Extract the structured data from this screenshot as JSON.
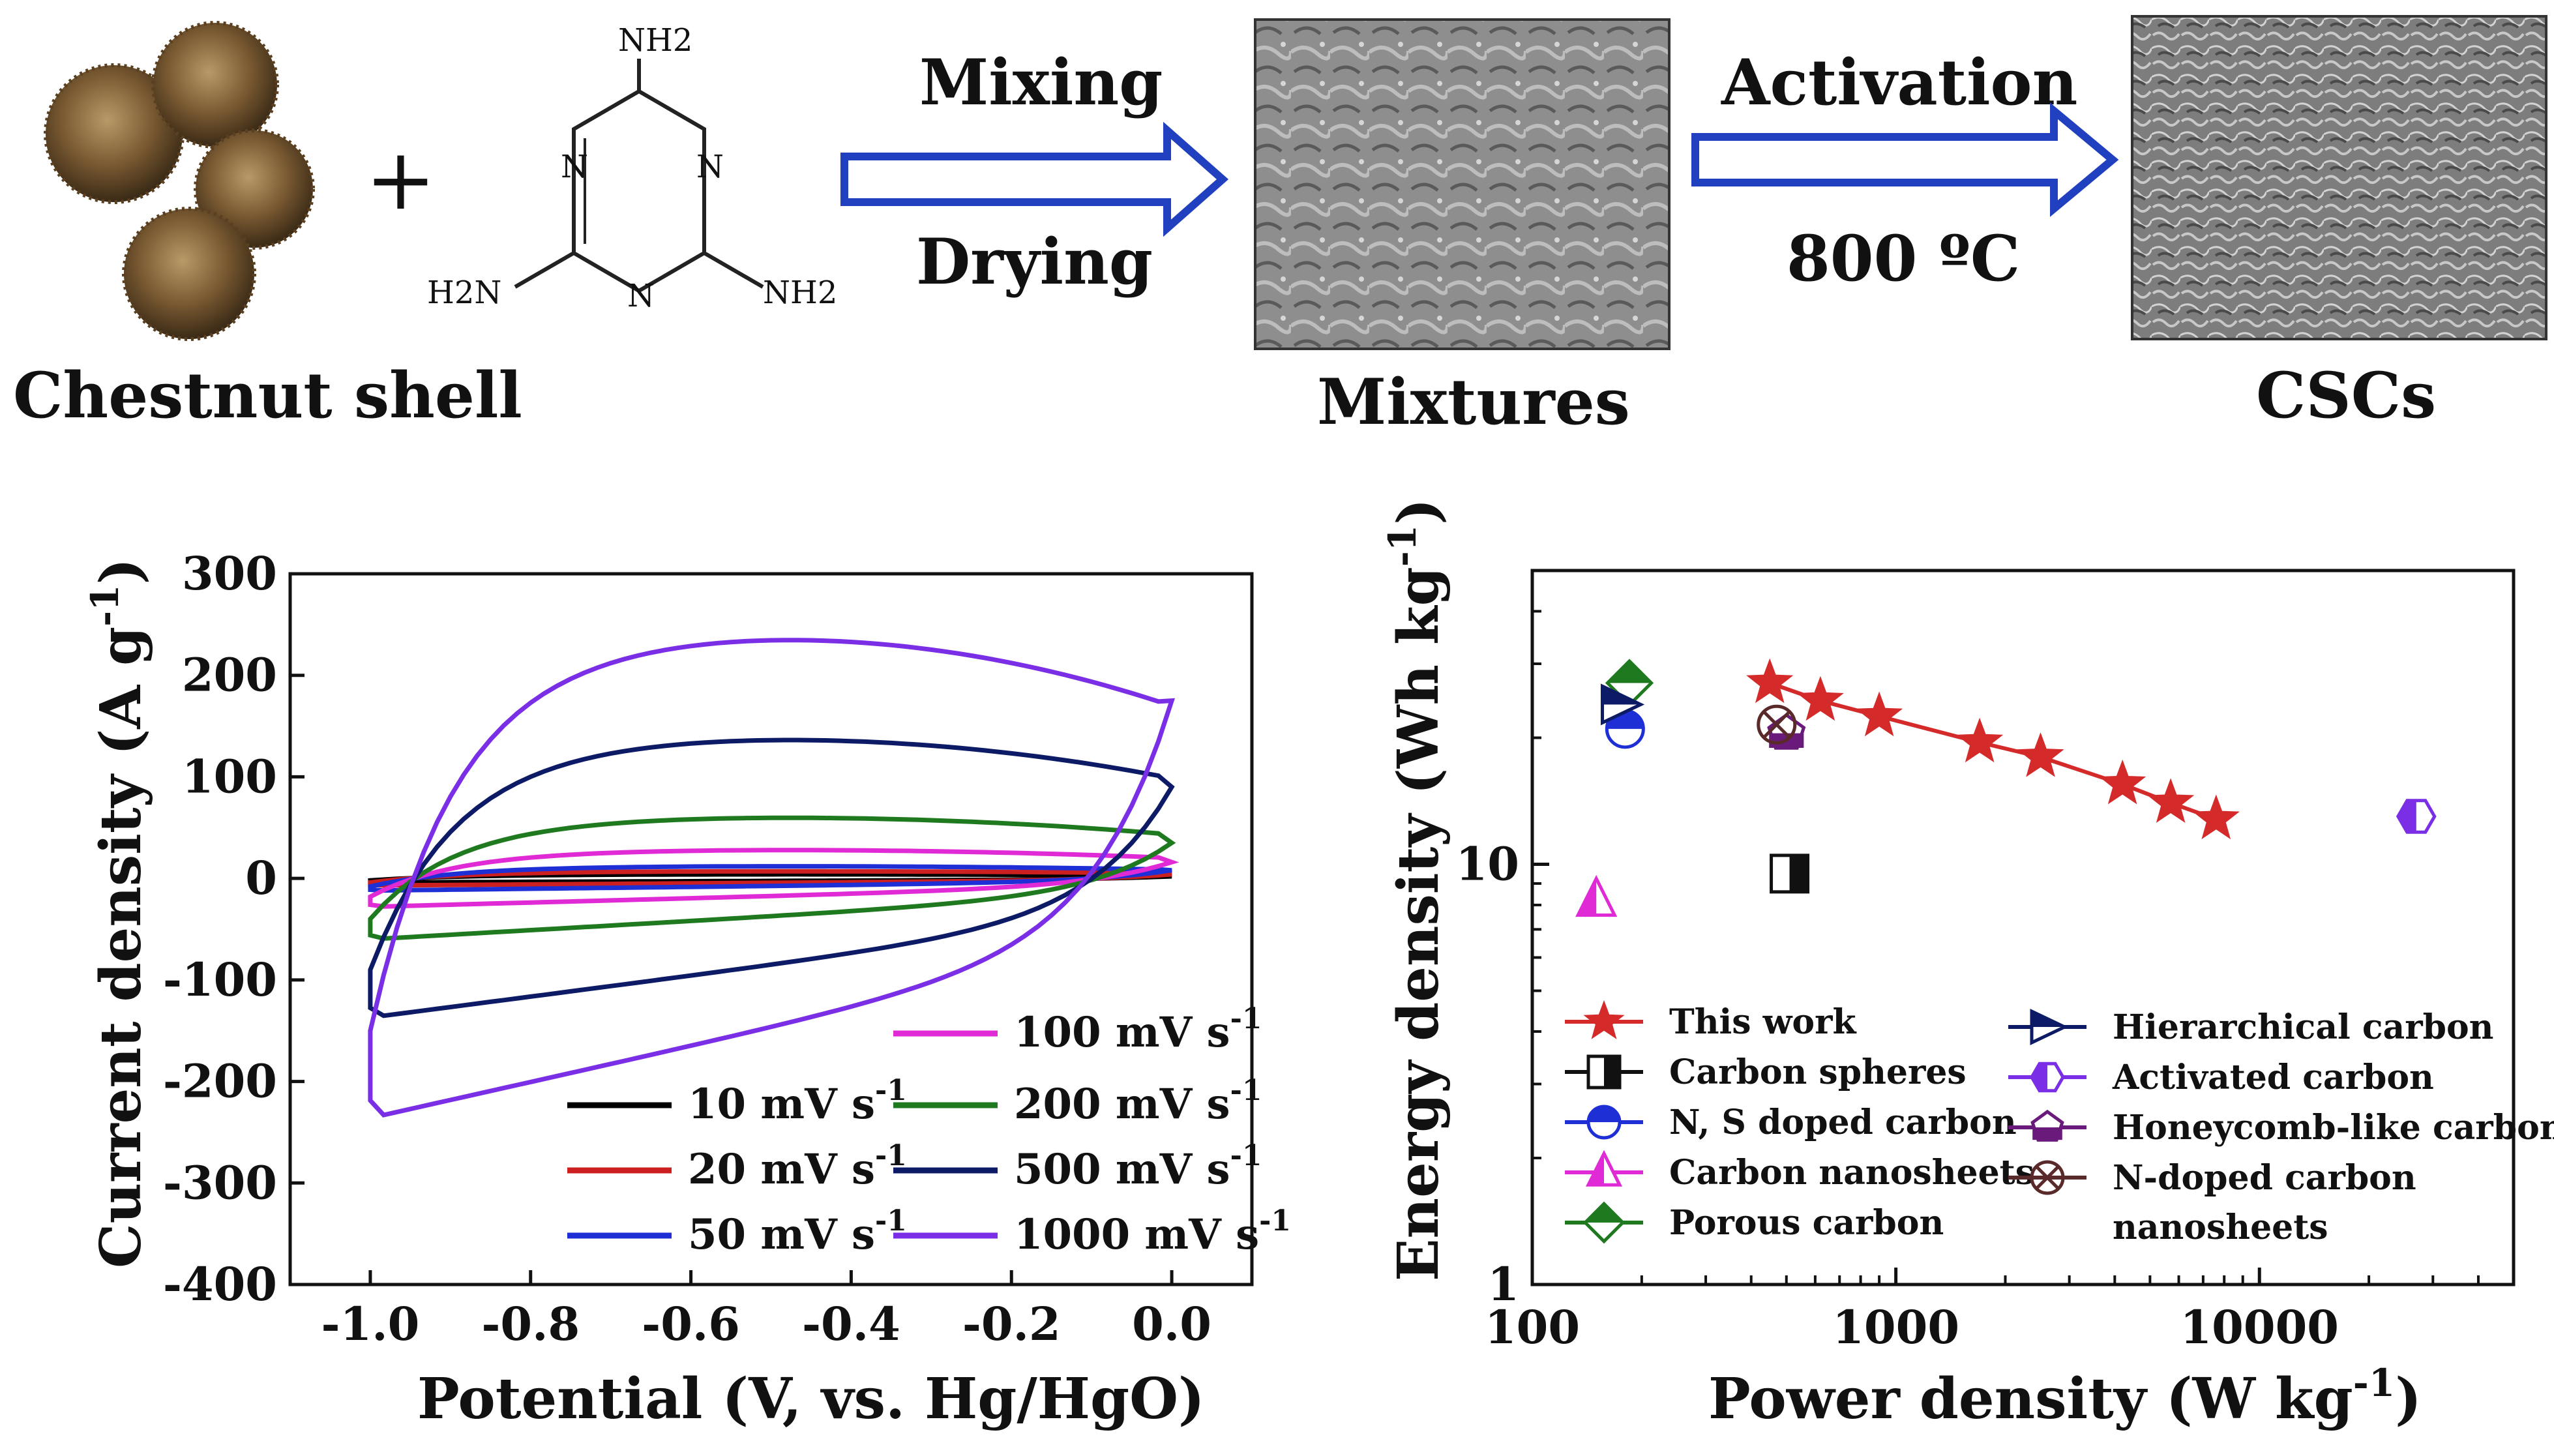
{
  "scheme": {
    "chestnut_label": "Chestnut shell",
    "plus": "+",
    "melamine": {
      "nh2_top": "NH2",
      "nh2_left": "H2N",
      "nh2_right": "NH2",
      "n": "N"
    },
    "step1_top": "Mixing",
    "step1_bottom": "Drying",
    "mixtures_label": "Mixtures",
    "step2_top": "Activation",
    "step2_bottom": "800 ºC",
    "cscs_label": "CSCs",
    "arrow_color": "#2040c0"
  },
  "chart_data": [
    {
      "type": "line",
      "title": "",
      "xlabel": "Potential (V, vs. Hg/HgO)",
      "ylabel": "Current density (A g-1)",
      "xlim": [
        -1.1,
        0.1
      ],
      "ylim": [
        -400,
        300
      ],
      "xticks": [
        "-1.0",
        "-0.8",
        "-0.6",
        "-0.4",
        "-0.2",
        "0.0"
      ],
      "yticks": [
        "300",
        "200",
        "100",
        "0",
        "-100",
        "-200",
        "-300",
        "-400"
      ],
      "series": [
        {
          "name": "10 mV s-1",
          "label": "10 mV s",
          "sup": "-1",
          "color": "#000000",
          "a": 4,
          "t0": 2,
          "b0": -2
        },
        {
          "name": "20 mV s-1",
          "label": "20 mV s",
          "sup": "-1",
          "color": "#cc1f1f",
          "a": 7,
          "t0": 4,
          "b0": -4
        },
        {
          "name": "50 mV s-1",
          "label": "50 mV s",
          "sup": "-1",
          "color": "#1f2fd6",
          "a": 12,
          "t0": 8,
          "b0": -8
        },
        {
          "name": "100 mV s-1",
          "label": "100 mV s",
          "sup": "-1",
          "color": "#e02ad6",
          "a": 28,
          "t0": 16,
          "b0": -18
        },
        {
          "name": "200 mV s-1",
          "label": "200 mV s",
          "sup": "-1",
          "color": "#1f7a1f",
          "a": 60,
          "t0": 35,
          "b0": -40
        },
        {
          "name": "500 mV s-1",
          "label": "500 mV s",
          "sup": "-1",
          "color": "#0d1a66",
          "a": 137,
          "t0": 90,
          "b0": -90
        },
        {
          "name": "1000 mV s-1",
          "label": "1000 mV s",
          "sup": "-1",
          "color": "#7a2ee6",
          "a": 236,
          "t0": 175,
          "b0": -150
        }
      ]
    },
    {
      "type": "scatter",
      "title": "",
      "xlabel": "Power density (W kg-1)",
      "ylabel": "Energy density (Wh kg-1)",
      "xscale": "log",
      "yscale": "log",
      "xlim": [
        100,
        50000
      ],
      "ylim": [
        1,
        50
      ],
      "xticks": [
        "100",
        "1000",
        "10000"
      ],
      "yticks": [
        "10",
        "1"
      ],
      "series": [
        {
          "name": "This work",
          "marker": "star",
          "color": "#d42a2a",
          "points": [
            [
              450,
              27
            ],
            [
              620,
              24.5
            ],
            [
              900,
              22.5
            ],
            [
              1700,
              19.5
            ],
            [
              2500,
              18
            ],
            [
              4200,
              15.5
            ],
            [
              5700,
              14
            ],
            [
              7600,
              12.8
            ]
          ]
        },
        {
          "name": "Carbon spheres",
          "marker": "half-square",
          "color": "#111111",
          "points": [
            [
              510,
              9.5
            ]
          ]
        },
        {
          "name": "N, S doped carbon",
          "marker": "half-circle",
          "color": "#1f2fd6",
          "points": [
            [
              180,
              21
            ]
          ]
        },
        {
          "name": "Carbon nanosheets",
          "marker": "half-triangle",
          "color": "#e02ad6",
          "points": [
            [
              150,
              8.2
            ]
          ]
        },
        {
          "name": "Porous carbon",
          "marker": "half-diamond",
          "color": "#1f7a1f",
          "points": [
            [
              185,
              27
            ]
          ]
        },
        {
          "name": "Hierarchical carbon",
          "marker": "half-right-triangle",
          "color": "#0d1a66",
          "points": [
            [
              175,
              24
            ]
          ]
        },
        {
          "name": "Activated carbon",
          "marker": "half-hexagon",
          "color": "#7a2ee6",
          "points": [
            [
              27000,
              13
            ]
          ]
        },
        {
          "name": "Honeycomb-like carbon",
          "marker": "half-pentagon",
          "color": "#6a1a7a",
          "points": [
            [
              500,
              20.5
            ]
          ]
        },
        {
          "name": "N-doped carbon nanosheets",
          "name_line2": "nanosheets",
          "marker": "x-circle",
          "color": "#5a2a2a",
          "points": [
            [
              470,
              21.5
            ]
          ]
        }
      ]
    }
  ]
}
